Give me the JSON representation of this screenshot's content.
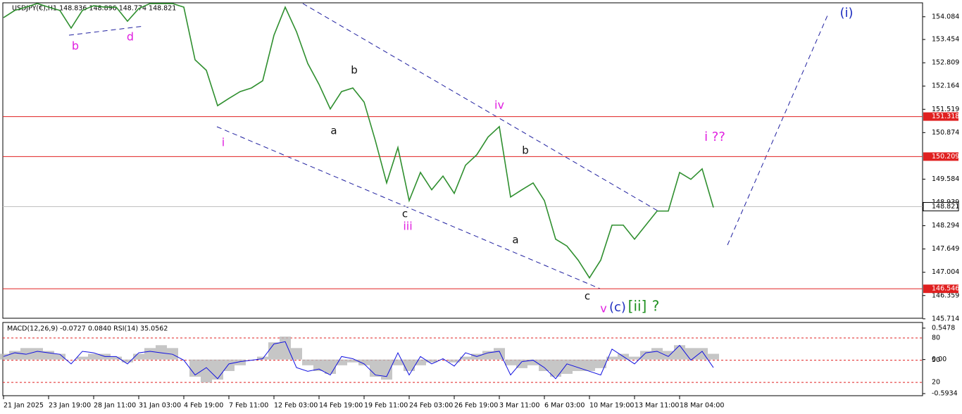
{
  "chart_data": [
    {
      "type": "line",
      "title": "USDJPY(€),H1  148.836 148.896 148.774 148.821",
      "categories": [
        "21 Jan 2025",
        null,
        null,
        null,
        "23 Jan 19:00",
        null,
        null,
        null,
        "28 Jan 11:00",
        null,
        null,
        null,
        "31 Jan 03:00",
        null,
        null,
        null,
        "4 Feb 19:00",
        null,
        null,
        null,
        "7 Feb 11:00",
        null,
        null,
        null,
        "12 Feb 03:00",
        null,
        null,
        null,
        "14 Feb 19:00",
        null,
        null,
        null,
        "19 Feb 11:00",
        null,
        null,
        null,
        "24 Feb 03:00",
        null,
        null,
        null,
        "26 Feb 19:00",
        null,
        null,
        null,
        "3 Mar 11:00",
        null,
        null,
        null,
        "6 Mar 03:00",
        null,
        null,
        null,
        "10 Mar 19:00",
        null,
        null,
        null,
        "13 Mar 11:00",
        null,
        null,
        null,
        "18 Mar 04:00",
        null,
        null,
        null,
        null,
        null,
        null,
        null,
        null,
        null,
        null,
        null,
        null,
        null,
        null,
        null,
        null,
        null,
        null,
        null,
        null,
        null
      ],
      "series": [
        {
          "color": "#2f8f2f",
          "values": [
            154.06,
            154.26,
            154.35,
            154.45,
            154.35,
            154.26,
            153.77,
            154.26,
            154.39,
            154.35,
            154.35,
            153.96,
            154.31,
            154.45,
            154.45,
            154.45,
            154.35,
            152.89,
            152.6,
            151.62,
            151.82,
            152.01,
            152.11,
            152.31,
            153.57,
            154.35,
            153.67,
            152.79,
            152.21,
            151.53,
            152.01,
            152.11,
            151.72,
            150.65,
            149.48,
            150.46,
            148.99,
            149.77,
            149.29,
            149.67,
            149.19,
            149.97,
            150.26,
            150.75,
            151.04,
            149.09,
            149.29,
            149.48,
            148.99,
            147.92,
            147.73,
            147.34,
            146.85,
            147.34,
            148.31,
            148.31,
            147.92,
            148.31,
            148.7,
            148.7,
            149.77,
            149.58,
            149.87,
            148.8,
            null,
            null,
            null,
            null,
            null,
            null,
            null,
            null,
            null,
            null,
            null,
            null,
            null,
            null,
            null,
            null,
            null,
            null
          ]
        }
      ],
      "ylim": [
        145.73,
        154.47
      ],
      "yticks": [
        154.084,
        153.454,
        152.809,
        152.164,
        151.519,
        150.874,
        149.584,
        148.939,
        148.294,
        147.649,
        147.004,
        146.359,
        145.714
      ],
      "levels": [
        151.318,
        150.209,
        146.546
      ],
      "level_color": "#e02020",
      "last_price": 148.821,
      "annotations": [
        {
          "text": "b",
          "color": "#e020e0"
        },
        {
          "text": "d",
          "color": "#e020e0"
        },
        {
          "text": "i",
          "color": "#e020e0"
        },
        {
          "text": "a",
          "color": "#111111"
        },
        {
          "text": "b",
          "color": "#111111"
        },
        {
          "text": "c",
          "color": "#111111"
        },
        {
          "text": "iii",
          "color": "#e020e0"
        },
        {
          "text": "iv",
          "color": "#e020e0"
        },
        {
          "text": "b",
          "color": "#111111"
        },
        {
          "text": "a",
          "color": "#111111"
        },
        {
          "text": "c",
          "color": "#111111"
        },
        {
          "text": "v",
          "color": "#e020e0"
        },
        {
          "text": "(c)",
          "color": "#2030c0"
        },
        {
          "text": "[ii]",
          "color": "#209020"
        },
        {
          "text": "?",
          "color": "#209020"
        },
        {
          "text": "i ??",
          "color": "#e020e0"
        },
        {
          "text": "(i)",
          "color": "#2030c0"
        }
      ]
    },
    {
      "type": "line",
      "title": "MACD(12,26,9) -0.0727 0.0840 RSI(14) 35.0562",
      "series": [
        {
          "color": "#1010e0",
          "values": [
            55,
            60,
            58,
            62,
            60,
            58,
            45,
            62,
            60,
            55,
            55,
            45,
            60,
            62,
            60,
            58,
            50,
            30,
            40,
            25,
            45,
            48,
            50,
            52,
            72,
            75,
            40,
            35,
            38,
            30,
            55,
            52,
            45,
            30,
            28,
            60,
            30,
            55,
            45,
            52,
            42,
            60,
            55,
            60,
            62,
            30,
            48,
            50,
            40,
            25,
            45,
            40,
            35,
            30,
            65,
            55,
            45,
            60,
            62,
            55,
            70,
            50,
            62,
            40,
            null,
            null,
            null,
            null,
            null,
            null,
            null,
            null,
            null,
            null,
            null,
            null,
            null,
            null,
            null,
            null,
            null,
            null
          ]
        },
        {
          "color": "#b8b8b8",
          "axis": "y2",
          "values": [
            0.1,
            0.15,
            0.2,
            0.2,
            0.15,
            0.1,
            0,
            0.05,
            0.1,
            0.1,
            0.05,
            -0.05,
            0.1,
            0.2,
            0.25,
            0.2,
            0,
            -0.3,
            -0.4,
            -0.35,
            -0.2,
            -0.1,
            0,
            0.05,
            0.3,
            0.4,
            0.2,
            -0.1,
            -0.2,
            -0.25,
            -0.1,
            -0.05,
            -0.1,
            -0.3,
            -0.35,
            -0.1,
            -0.2,
            -0.1,
            -0.05,
            0,
            -0.05,
            0.05,
            0.1,
            0.15,
            0.2,
            -0.1,
            -0.15,
            -0.1,
            -0.2,
            -0.3,
            -0.25,
            -0.2,
            -0.2,
            -0.15,
            0.05,
            0.1,
            0.05,
            0.15,
            0.2,
            0.15,
            0.25,
            0.2,
            0.2,
            0.1,
            null,
            null,
            null,
            null,
            null,
            null,
            null,
            null,
            null,
            null,
            null,
            null,
            null,
            null,
            null,
            null,
            null,
            null
          ]
        }
      ],
      "ylim": [
        2,
        101
      ],
      "yticks": [
        80,
        50,
        20
      ],
      "y2lim": [
        -0.63,
        0.646
      ],
      "y2ticks": [
        0.5478,
        {
          "value": 0,
          "label": "0.00"
        },
        -0.5934
      ],
      "guide_color": "#e02020"
    }
  ]
}
